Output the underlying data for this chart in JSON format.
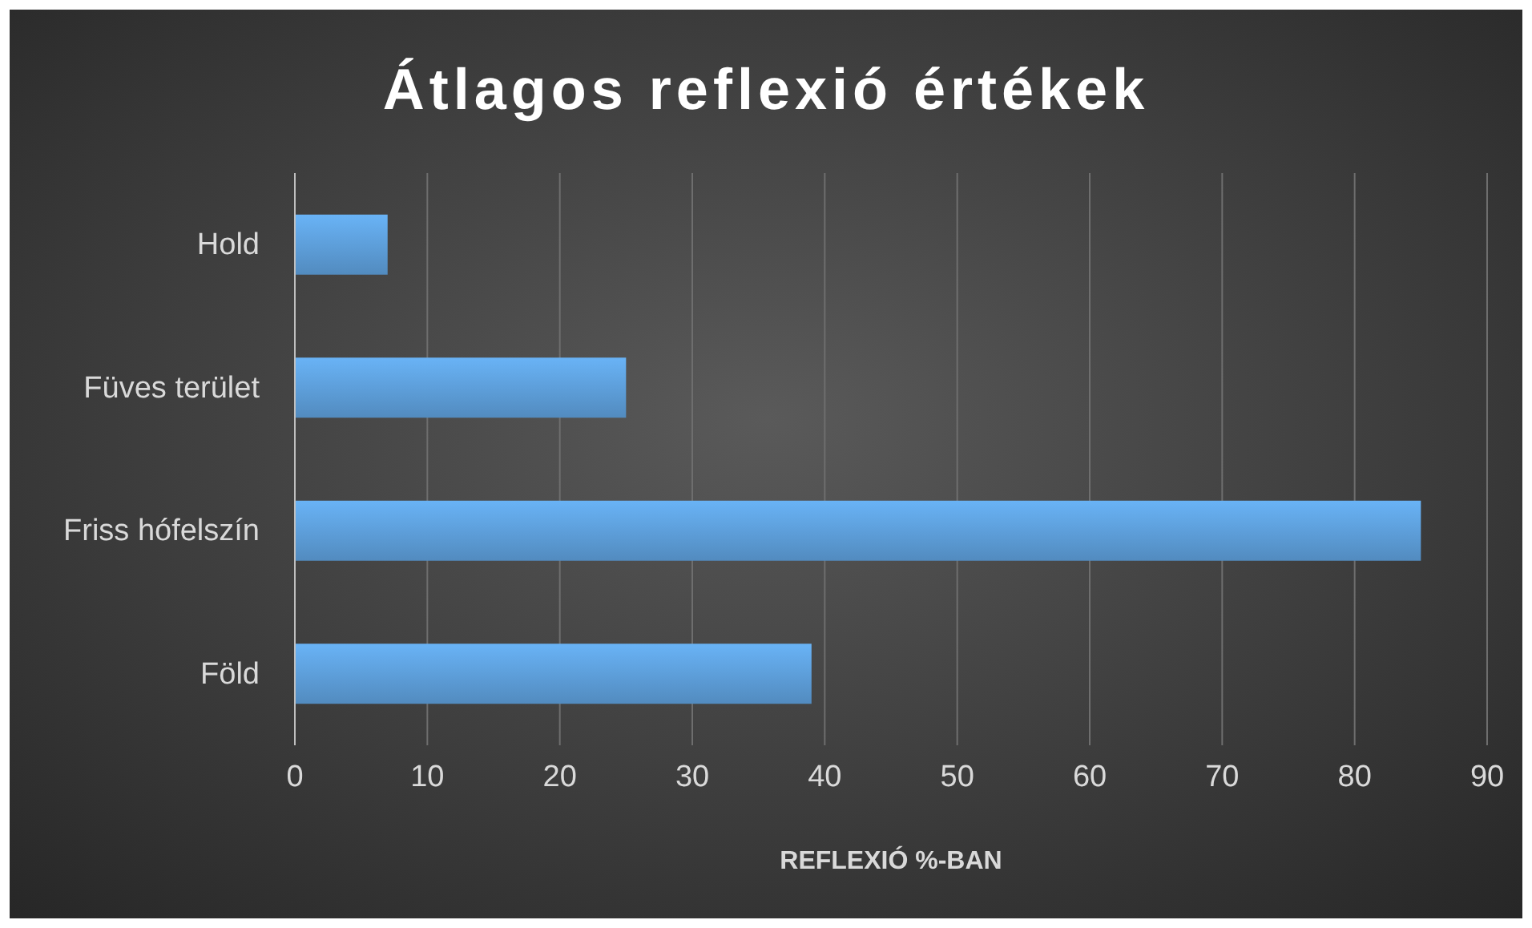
{
  "chart_data": {
    "type": "bar",
    "orientation": "horizontal",
    "title": "Átlagos reflexió értékek",
    "xlabel": "REFLEXIÓ %-BAN",
    "categories": [
      "Hold",
      "Füves terület",
      "Friss hófelszín",
      "Föld"
    ],
    "values": [
      7,
      25,
      85,
      39
    ],
    "color": "#5b9bd5",
    "xlim": [
      0,
      90
    ],
    "xticks": [
      0,
      10,
      20,
      30,
      40,
      50,
      60,
      70,
      80,
      90
    ],
    "grid": "x"
  }
}
